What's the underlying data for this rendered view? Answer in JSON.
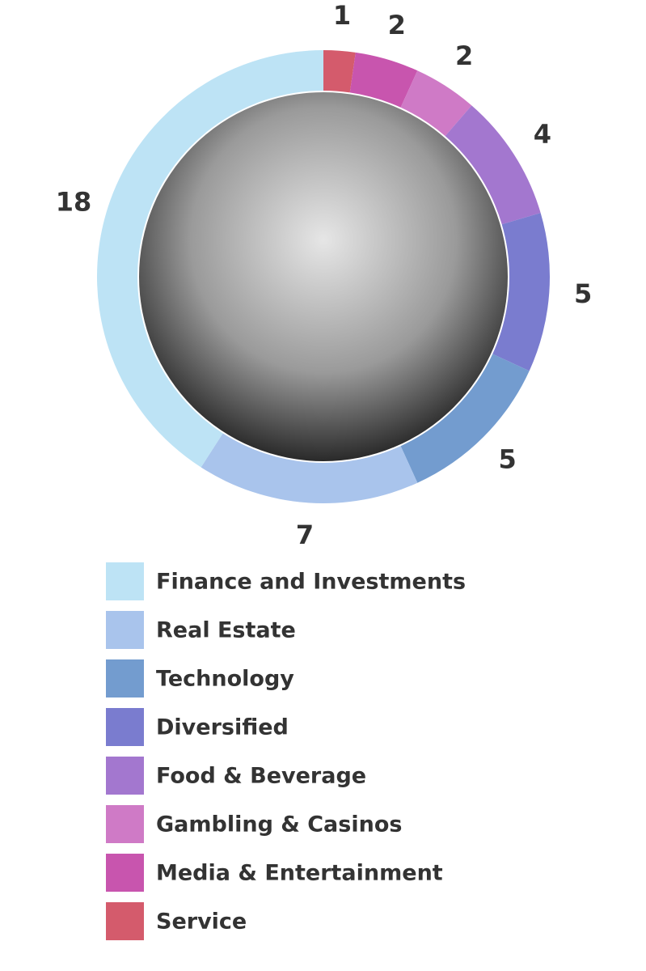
{
  "chart_data": {
    "type": "donut",
    "categories": [
      "Finance and Investments",
      "Real Estate",
      "Technology",
      "Diversified",
      "Food & Beverage",
      "Gambling & Casinos",
      "Media & Entertainment",
      "Service"
    ],
    "values": [
      18,
      7,
      5,
      5,
      4,
      2,
      2,
      1
    ],
    "colors": [
      "#bde3f5",
      "#a9c4ec",
      "#739ccf",
      "#7a7ccf",
      "#a377cf",
      "#cf7ac6",
      "#c855ae",
      "#d45b6c"
    ]
  }
}
